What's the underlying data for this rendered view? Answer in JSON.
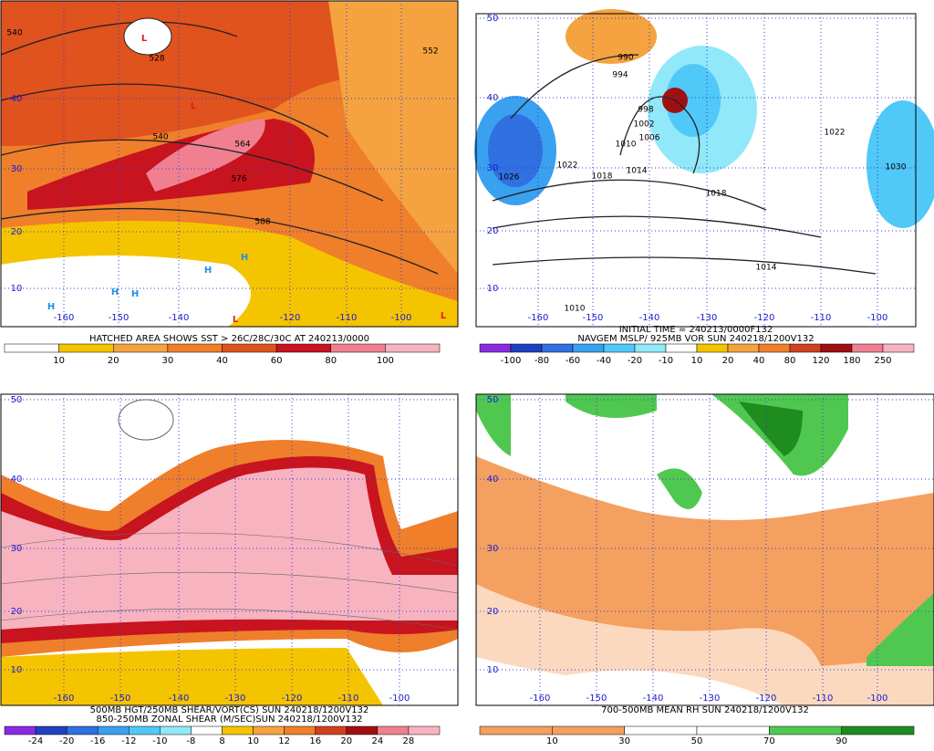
{
  "panels": [
    {
      "caption": [
        "HATCHED AREA SHOWS SST > 26C/28C/30C AT 240213/0000"
      ],
      "colorbar": [
        "10",
        "20",
        "30",
        "40",
        "60",
        "80",
        "100"
      ],
      "colorbar_colors": [
        "#ffffff",
        "#f5c400",
        "#f4a340",
        "#ef7f2a",
        "#e0521e",
        "#c8141e",
        "#f08090",
        "#f7b3c0"
      ],
      "lat_labels": [
        "40",
        "30",
        "20",
        "10"
      ],
      "lon_labels": [
        "-160",
        "-150",
        "-140",
        "-120",
        "-110",
        "-100"
      ],
      "contour_labels": [
        "540",
        "528",
        "552",
        "540",
        "564",
        "576",
        "588"
      ],
      "highs": [
        "H",
        "H",
        "H",
        "H",
        "H"
      ],
      "lows": [
        "L",
        "L",
        "L",
        "L"
      ]
    },
    {
      "caption": [
        "INITIAL TIME = 240213/0000F132",
        "NAVGEM MSLP/ 925MB VOR SUN 240218/1200V132"
      ],
      "colorbar": [
        "-100",
        "-80",
        "-60",
        "-40",
        "-20",
        "-10",
        "10",
        "20",
        "40",
        "80",
        "120",
        "180",
        "250"
      ],
      "colorbar_colors": [
        "#8a2be2",
        "#2040c0",
        "#3070e0",
        "#3aa0f0",
        "#50c8f8",
        "#90e8f8",
        "#ffffff",
        "#f5c400",
        "#f4a340",
        "#ef7f2a",
        "#d04020",
        "#a01010",
        "#f08090",
        "#f7b3c0"
      ],
      "lat_labels": [
        "50",
        "40",
        "30",
        "20",
        "10"
      ],
      "lon_labels": [
        "-160",
        "-150",
        "-140",
        "-130",
        "-120",
        "-110",
        "-100"
      ],
      "contour_labels": [
        "990",
        "994",
        "998",
        "1002",
        "1006",
        "1010",
        "1022",
        "1018",
        "1014",
        "1026",
        "1018",
        "1014",
        "1010",
        "1022",
        "1030"
      ]
    },
    {
      "caption": [
        "500MB HGT/250MB SHEAR/VORT(CS) SUN 240218/1200V132",
        "850-250MB ZONAL SHEAR (M/SEC)SUN 240218/1200V132"
      ],
      "colorbar": [
        "-24",
        "-20",
        "-16",
        "-12",
        "-10",
        "-8",
        "8",
        "10",
        "12",
        "16",
        "20",
        "24",
        "28"
      ],
      "colorbar_colors": [
        "#8a2be2",
        "#2040c0",
        "#3070e0",
        "#3aa0f0",
        "#50c8f8",
        "#90e8f8",
        "#ffffff",
        "#f5c400",
        "#f4a340",
        "#ef7f2a",
        "#d04020",
        "#a01010",
        "#f08090",
        "#f7b3c0"
      ],
      "lat_labels": [
        "50",
        "40",
        "30",
        "20",
        "10"
      ],
      "lon_labels": [
        "-160",
        "-150",
        "-140",
        "-130",
        "-120",
        "-110",
        "-100"
      ]
    },
    {
      "caption": [
        "700-500MB MEAN RH SUN 240218/1200V132"
      ],
      "colorbar": [
        "10",
        "30",
        "50",
        "70",
        "90"
      ],
      "colorbar_colors": [
        "#f4a060",
        "#f4a060",
        "#ffffff",
        "#ffffff",
        "#50c850",
        "#1e8c1e"
      ],
      "lat_labels": [
        "50",
        "40",
        "30",
        "20",
        "10"
      ],
      "lon_labels": [
        "-160",
        "-150",
        "-140",
        "-130",
        "-120",
        "-110",
        "-100"
      ]
    }
  ]
}
